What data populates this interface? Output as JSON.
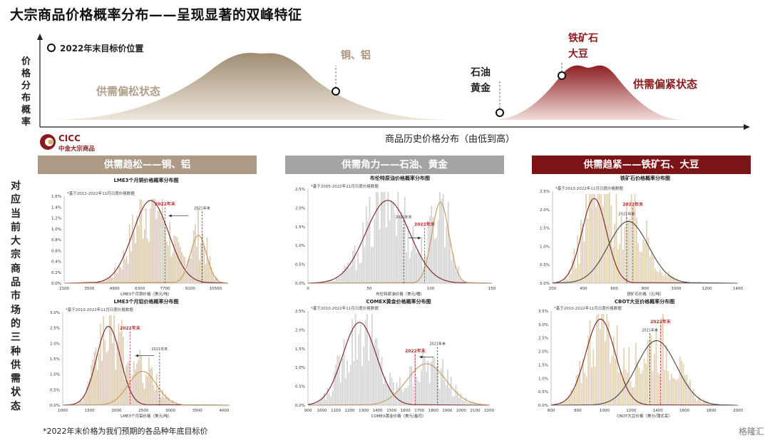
{
  "title": "大宗商品价格概率分布——呈现显著的双峰特征",
  "concept": {
    "y_axis_label": [
      "价",
      "格",
      "分",
      "布",
      "概",
      "率"
    ],
    "x_axis_label": "商品历史价格分布（由低到高）",
    "legend": "2022年末目标价位置",
    "loose_label": "供需偏松状态",
    "tight_label": "供需偏紧状态",
    "copper_label": "铜、铝",
    "oil_label_1": "石油",
    "oil_label_2": "黄金",
    "ore_label_1": "铁矿石",
    "ore_label_2": "大豆",
    "loose_color": "#b0a089",
    "tight_color": "#8b1a1e"
  },
  "logo": {
    "name": "CICC",
    "sub": "中金大宗商品"
  },
  "sections": [
    {
      "label": "供需趋松——铜、铝",
      "color": "#ad9a86"
    },
    {
      "label": "供需角力——石油、黄金",
      "color": "#a4a4a4"
    },
    {
      "label": "供需趋紧——铁矿石、大豆",
      "color": "#7b1416"
    }
  ],
  "vertical_label": [
    "对",
    "应",
    "当",
    "前",
    "大",
    "宗",
    "商",
    "品",
    "市",
    "场",
    "的",
    "三",
    "种",
    "供",
    "需",
    "状",
    "态"
  ],
  "footnote": "*2022年末价格为我们预期的各品种年底目标价",
  "watermark": "格隆汇",
  "chart_data": [
    {
      "type": "bar",
      "title": "LME3个月铜价格概率分布图",
      "note": "*基于2011-2022年11月日度价格数据",
      "xlabel": "LME3个月铜价格（美元/吨）",
      "xticks": [
        2100,
        3500,
        4900,
        6300,
        7700,
        9100,
        10500
      ],
      "xlim": [
        2100,
        11200
      ],
      "yticks": [
        "0.0%",
        "0.2%",
        "0.4%",
        "0.6%",
        "0.8%",
        "1.0%",
        "1.2%",
        "1.4%",
        "1.6%"
      ],
      "ylim": [
        0,
        1.6
      ],
      "hist_color": "#dccbb2",
      "curves": [
        {
          "mu": 6900,
          "sigma": 1000,
          "peak": 1.52,
          "color": "#7a1e22"
        },
        {
          "mu": 9550,
          "sigma": 450,
          "peak": 0.88,
          "color": "#c89758"
        }
      ],
      "markers": [
        {
          "label": "2022年末",
          "x": 7700,
          "color": "#c0282c",
          "label_y": 1.43
        },
        {
          "label": "2021年末",
          "x": 9750,
          "color": "#333333",
          "label_y": 1.36
        }
      ],
      "arrow": {
        "from": 9000,
        "to": 7900,
        "y": 1.24
      }
    },
    {
      "type": "bar",
      "title": "布伦特原油价格概率分布图",
      "note": "*基于2005-2022年11月日度价格数据",
      "xlabel": "布伦特原油价格（美元/桶）",
      "xticks": [
        0,
        50,
        100,
        150
      ],
      "xlim": [
        0,
        150
      ],
      "yticks": [
        "0.0%",
        "0.5%",
        "1.0%",
        "1.5%",
        "2.0%",
        "2.5%"
      ],
      "ylim": [
        0,
        2.5
      ],
      "hist_color": "#d4d4d4",
      "curves": [
        {
          "mu": 65,
          "sigma": 18,
          "peak": 2.2,
          "color": "#7a1e22"
        },
        {
          "mu": 108,
          "sigma": 7,
          "peak": 2.15,
          "color": "#c89758"
        }
      ],
      "markers": [
        {
          "label": "2021年末",
          "x": 78,
          "color": "#333333",
          "label_y": 1.72
        },
        {
          "label": "2022年末",
          "x": 95,
          "color": "#c0282c",
          "label_y": 1.52
        }
      ],
      "arrow": {
        "from": 82,
        "to": 92,
        "y": 1.2
      }
    },
    {
      "type": "bar",
      "title": "铁矿石价格概率分布图",
      "note": "*基于2013-2022年11月日度价格数据",
      "xlabel": "铁矿石价格（元/吨）",
      "xticks": [
        200,
        400,
        600,
        800,
        1000,
        1200,
        1400
      ],
      "xlim": [
        200,
        1400
      ],
      "yticks": [
        "0.0%",
        "0.5%",
        "1.0%",
        "1.5%",
        "2.0%",
        "2.5%"
      ],
      "ylim": [
        0,
        2.5
      ],
      "hist_color": "#e2d2b4",
      "curves": [
        {
          "mu": 470,
          "sigma": 80,
          "peak": 2.3,
          "color": "#7a1e22"
        },
        {
          "mu": 690,
          "sigma": 130,
          "peak": 1.68,
          "color": "#444444"
        }
      ],
      "markers": [
        {
          "label": "2021年末",
          "x": 680,
          "color": "#333333",
          "label_y": 1.85
        },
        {
          "label": "2022年末",
          "x": 720,
          "color": "#c0282c",
          "label_y": 2.1
        }
      ],
      "arrow": null
    },
    {
      "type": "bar",
      "title": "LME3个月铝价格概率分布图",
      "note": "*基于2010-2022年11月日度价格数据",
      "xlabel": "LME3个月铝价格（美元/吨）",
      "xticks": [
        1000,
        1500,
        2000,
        2500,
        3000,
        3500,
        4000
      ],
      "xlim": [
        1000,
        4100
      ],
      "yticks": [
        "0.0%",
        "0.5%",
        "1.0%",
        "1.5%",
        "2.0%",
        "2.5%",
        "3.0%"
      ],
      "ylim": [
        0,
        3.0
      ],
      "hist_color": "#dccbb2",
      "curves": [
        {
          "mu": 1850,
          "sigma": 220,
          "peak": 2.55,
          "color": "#7a1e22"
        },
        {
          "mu": 2480,
          "sigma": 260,
          "peak": 1.1,
          "color": "#c89758"
        }
      ],
      "markers": [
        {
          "label": "2022年末",
          "x": 2250,
          "color": "#c0282c",
          "label_y": 2.45
        },
        {
          "label": "2021年末",
          "x": 2800,
          "color": "#333333",
          "label_y": 1.78
        }
      ],
      "arrow": {
        "from": 2700,
        "to": 2350,
        "y": 1.6
      }
    },
    {
      "type": "bar",
      "title": "COMEX黄金价格概率分布图",
      "note": "*基于2010-2022年11月日度价格数据",
      "xlabel": "COMEX黄金价格（美元/盎司）",
      "xticks": [
        900,
        1000,
        1100,
        1200,
        1300,
        1400,
        1500,
        1600,
        1700,
        1800,
        1900,
        2000,
        2100,
        2200
      ],
      "xlim": [
        900,
        2200
      ],
      "yticks": [
        "0.0%",
        "0.5%",
        "1.0%",
        "1.5%",
        "2.0%",
        "2.5%"
      ],
      "ylim": [
        0,
        2.5
      ],
      "hist_color": "#d4d4d4",
      "curves": [
        {
          "mu": 1270,
          "sigma": 120,
          "peak": 2.2,
          "color": "#7a1e22"
        },
        {
          "mu": 1750,
          "sigma": 140,
          "peak": 1.1,
          "color": "#c89758"
        }
      ],
      "markers": [
        {
          "label": "2022年末",
          "x": 1670,
          "color": "#c0282c",
          "label_y": 1.4
        },
        {
          "label": "2021年末",
          "x": 1830,
          "color": "#333333",
          "label_y": 1.6
        }
      ],
      "arrow": {
        "from": 1800,
        "to": 1700,
        "y": 1.28
      }
    },
    {
      "type": "bar",
      "title": "CBOT大豆价格概率分布图",
      "note": "*基于2010-2022年11月日度价格数据",
      "xlabel": "CBOT大豆价格（美分/蒲式耳）",
      "xticks": [
        600,
        800,
        1000,
        1200,
        1400,
        1600,
        1800,
        2000
      ],
      "xlim": [
        600,
        2000
      ],
      "yticks": [
        "0.0%",
        "0.5%",
        "1.0%",
        "1.5%",
        "2.0%",
        "2.5%",
        "3.0%",
        "3.5%"
      ],
      "ylim": [
        0,
        3.5
      ],
      "hist_color": "#e2d2b4",
      "curves": [
        {
          "mu": 970,
          "sigma": 110,
          "peak": 3.2,
          "color": "#7a1e22"
        },
        {
          "mu": 1390,
          "sigma": 150,
          "peak": 2.4,
          "color": "#444444"
        }
      ],
      "markers": [
        {
          "label": "2021年末",
          "x": 1340,
          "color": "#333333",
          "label_y": 2.75
        },
        {
          "label": "2022年末",
          "x": 1420,
          "color": "#c0282c",
          "label_y": 3.05
        }
      ],
      "arrow": null
    }
  ]
}
